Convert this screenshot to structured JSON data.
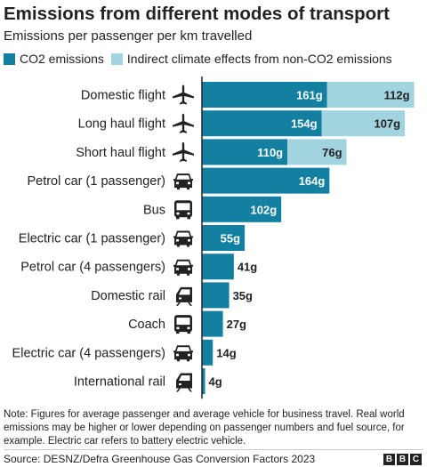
{
  "title": "Emissions from different modes of transport",
  "subtitle": "Emissions per passenger per km travelled",
  "legend": [
    {
      "label": "CO2 emissions",
      "color": "#1380a1"
    },
    {
      "label": "Indirect climate effects from non-CO2 emissions",
      "color": "#a2d4e0"
    }
  ],
  "chart_data": {
    "type": "bar",
    "orientation": "horizontal",
    "stacked": true,
    "categories": [
      "Domestic flight",
      "Long haul flight",
      "Short haul flight",
      "Petrol car (1 passenger)",
      "Bus",
      "Electric car (1 passenger)",
      "Petrol car (4 passengers)",
      "Domestic rail",
      "Coach",
      "Electric car (4 passengers)",
      "International rail"
    ],
    "icons": [
      "plane-icon",
      "plane-icon",
      "plane-icon",
      "car-icon",
      "bus-icon",
      "car-icon",
      "car-icon",
      "train-icon",
      "bus-icon",
      "car-icon",
      "train-icon"
    ],
    "series": [
      {
        "name": "CO2 emissions",
        "color": "#1380a1",
        "values": [
          161,
          154,
          110,
          164,
          102,
          55,
          41,
          35,
          27,
          14,
          4
        ],
        "labels": [
          "161g",
          "154g",
          "110g",
          "164g",
          "102g",
          "55g",
          "41g",
          "35g",
          "27g",
          "14g",
          "4g"
        ]
      },
      {
        "name": "Indirect climate effects from non-CO2 emissions",
        "color": "#a2d4e0",
        "values": [
          112,
          107,
          76,
          null,
          null,
          null,
          null,
          null,
          null,
          null,
          null
        ],
        "labels": [
          "112g",
          "107g",
          "76g",
          "",
          "",
          "",
          "",
          "",
          "",
          "",
          ""
        ]
      }
    ],
    "unit": "g"
  },
  "note": "Note: Figures for average passenger and average vehicle for business travel. Real world emissions may be higher or lower depending on passenger numbers and fuel source, for example. Electric car refers to battery electric vehicle.",
  "source": "Source: DESNZ/Defra Greenhouse Gas Conversion Factors 2023",
  "logo": [
    "B",
    "B",
    "C"
  ]
}
